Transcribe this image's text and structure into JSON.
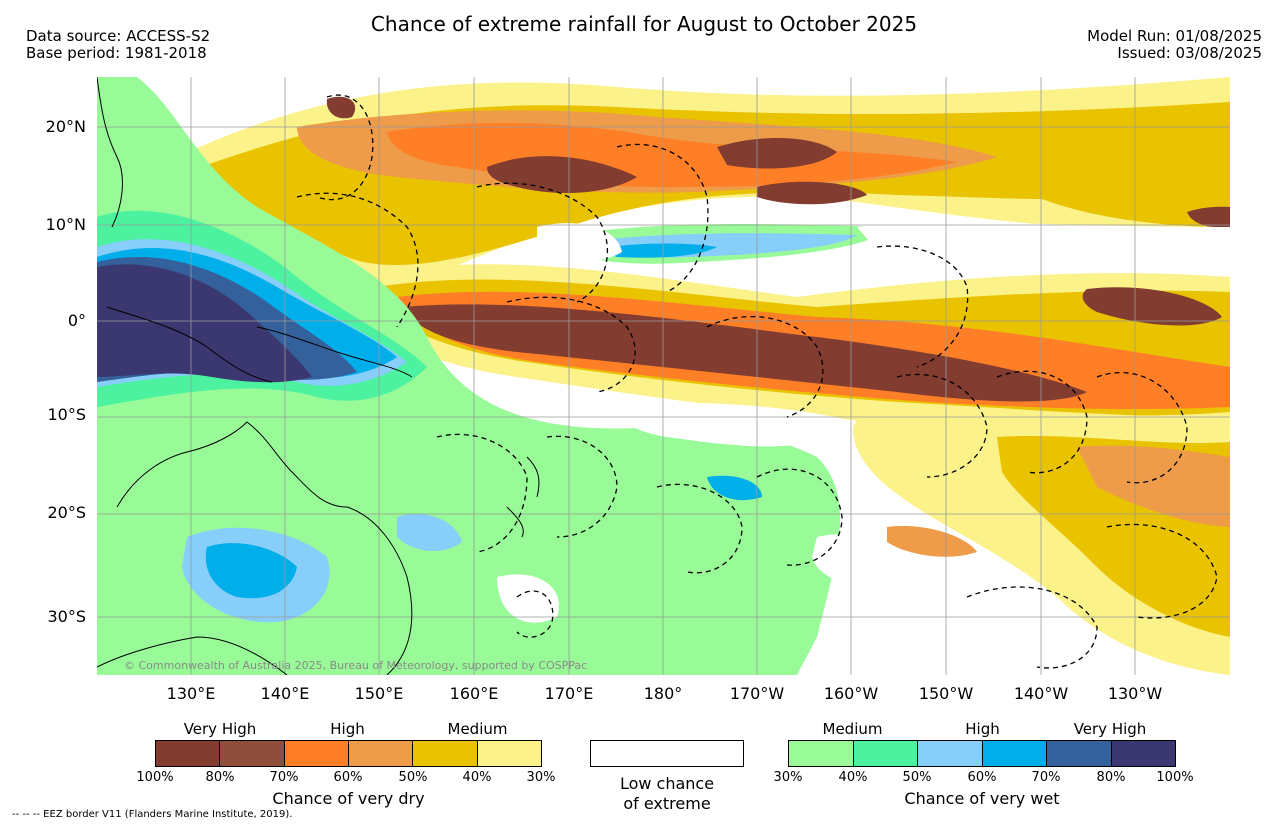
{
  "header": {
    "title": "Chance of extreme rainfall for August to October 2025",
    "data_source": "Data source: ACCESS-S2",
    "base_period": "Base period: 1981-2018",
    "model_run": "Model Run: 01/08/2025",
    "issued": "Issued: 03/08/2025"
  },
  "map": {
    "lat_labels": [
      "20°N",
      "10°N",
      "0°",
      "10°S",
      "20°S",
      "30°S"
    ],
    "lon_labels": [
      "130°E",
      "140°E",
      "150°E",
      "160°E",
      "170°E",
      "180°",
      "170°W",
      "160°W",
      "150°W",
      "140°W",
      "130°W"
    ],
    "credit": "© Commonwealth of Australia 2025, Bureau of Meteorology, supported by COSPPac"
  },
  "legend": {
    "dry": {
      "categories": [
        "Very High",
        "High",
        "Medium"
      ],
      "ticks": [
        "100%",
        "80%",
        "70%",
        "60%",
        "50%",
        "40%",
        "30%"
      ],
      "title": "Chance of very dry",
      "colors": [
        "#833c30",
        "#8f4e3c",
        "#ff7f27",
        "#ee9b4a",
        "#e9c300",
        "#fbf28a"
      ]
    },
    "low": {
      "line1": "Low chance",
      "line2": "of extreme"
    },
    "wet": {
      "categories": [
        "Medium",
        "High",
        "Very High"
      ],
      "ticks": [
        "30%",
        "40%",
        "50%",
        "60%",
        "70%",
        "80%",
        "100%"
      ],
      "title": "Chance of very wet",
      "colors": [
        "#98fb98",
        "#4cf2a0",
        "#87cefa",
        "#00aeea",
        "#34609c",
        "#3b3871"
      ]
    }
  },
  "footnote": "--  --  -- EEZ border V11 (Flanders Marine Institute, 2019)."
}
